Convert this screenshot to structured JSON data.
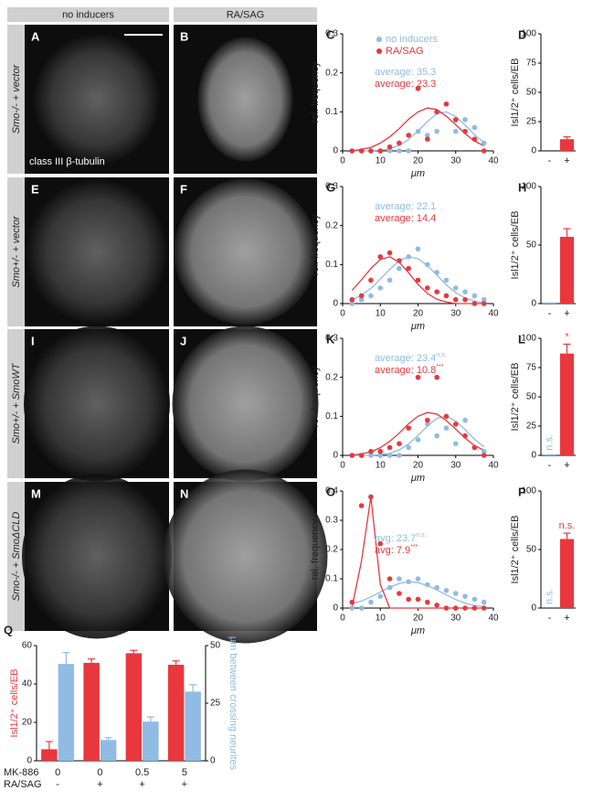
{
  "images": {
    "columns": [
      "no inducers",
      "RA/SAG"
    ],
    "rows": [
      "Smo-/- + vector",
      "Smo+/- + vector",
      "Smo+/- + SmoWT",
      "Smo-/- + SmoΔCLD"
    ],
    "panels": [
      [
        "A",
        "B"
      ],
      [
        "E",
        "F"
      ],
      [
        "I",
        "J"
      ],
      [
        "M",
        "N"
      ]
    ],
    "stain": "class III β-tubulin"
  },
  "chart_data": [
    {
      "type": "scatter",
      "label": "C",
      "xlabel": "μm",
      "ylabel": "rel. frequency",
      "x": [
        2.5,
        5,
        7.5,
        10,
        12.5,
        15,
        17.5,
        20,
        22.5,
        25,
        27.5,
        30,
        32.5,
        35,
        37.5
      ],
      "xlim": [
        0,
        40
      ],
      "xticks": [
        0,
        10,
        20,
        30,
        40
      ],
      "ylim": [
        0,
        0.3
      ],
      "yticks": [
        0,
        0.1,
        0.2,
        0.3
      ],
      "series": [
        {
          "name": "no inducers",
          "color": "#90bbe3",
          "values": [
            0,
            0,
            0,
            0,
            0,
            0,
            0,
            0.05,
            0.04,
            0.05,
            0.12,
            0.05,
            0.08,
            0.06,
            0.02
          ],
          "fit": [
            0,
            0,
            0,
            0.002,
            0.005,
            0.014,
            0.029,
            0.051,
            0.075,
            0.095,
            0.1,
            0.088,
            0.066,
            0.041,
            0.022
          ]
        },
        {
          "name": "RA/SAG",
          "color": "#e8383d",
          "values": [
            0,
            0,
            0,
            0,
            0.01,
            0.02,
            0.04,
            0.16,
            0.03,
            0.1,
            0.12,
            0.08,
            0.05,
            0.03,
            0
          ],
          "fit": [
            0,
            0.004,
            0.009,
            0.02,
            0.036,
            0.057,
            0.081,
            0.1,
            0.11,
            0.106,
            0.089,
            0.067,
            0.044,
            0.025,
            0.013
          ]
        }
      ],
      "annotations": [
        {
          "text": "average: 35.3",
          "color": "#90bbe3"
        },
        {
          "text": "average: 23.3",
          "color": "#e8383d"
        }
      ]
    },
    {
      "type": "bar",
      "label": "D",
      "ylabel": "Isl1/2⁺ cells/EB",
      "categories": [
        "-",
        "+"
      ],
      "values": [
        0,
        10
      ],
      "errors": [
        0,
        2
      ],
      "colors": [
        "#90bbe3",
        "#e8383d"
      ],
      "ylim": [
        0,
        100
      ],
      "yticks": [
        0,
        25,
        50,
        75,
        100
      ]
    },
    {
      "type": "scatter",
      "label": "G",
      "xlabel": "μm",
      "ylabel": "rel. frequency",
      "x": [
        2.5,
        5,
        7.5,
        10,
        12.5,
        15,
        17.5,
        20,
        22.5,
        25,
        27.5,
        30,
        32.5,
        35,
        37.5
      ],
      "xlim": [
        0,
        40
      ],
      "xticks": [
        0,
        10,
        20,
        30,
        40
      ],
      "ylim": [
        0,
        0.3
      ],
      "yticks": [
        0,
        0.1,
        0.2,
        0.3
      ],
      "series": [
        {
          "color": "#90bbe3",
          "values": [
            0,
            0.01,
            0.02,
            0.04,
            0.06,
            0.09,
            0.12,
            0.14,
            0.1,
            0.08,
            0.06,
            0.04,
            0.03,
            0.02,
            0.01
          ],
          "fit": [
            0.01,
            0.021,
            0.039,
            0.063,
            0.088,
            0.11,
            0.12,
            0.115,
            0.097,
            0.073,
            0.048,
            0.028,
            0.014,
            0.006,
            0.002
          ]
        },
        {
          "color": "#e8383d",
          "values": [
            0.01,
            0.02,
            0.06,
            0.12,
            0.13,
            0.11,
            0.09,
            0.06,
            0.04,
            0.03,
            0.02,
            0.01,
            0.01,
            0,
            0
          ],
          "fit": [
            0.034,
            0.061,
            0.09,
            0.113,
            0.12,
            0.106,
            0.079,
            0.049,
            0.026,
            0.011,
            0.004,
            0,
            0,
            0,
            0
          ]
        }
      ],
      "annotations": [
        {
          "text": "average: 22.1",
          "color": "#90bbe3"
        },
        {
          "text": "average: 14.4",
          "color": "#e8383d"
        }
      ]
    },
    {
      "type": "bar",
      "label": "H",
      "ylabel": "Isl1/2⁺ cells/EB",
      "categories": [
        "-",
        "+"
      ],
      "values": [
        1,
        57
      ],
      "errors": [
        0,
        7
      ],
      "colors": [
        "#90bbe3",
        "#e8383d"
      ],
      "ylim": [
        0,
        100
      ],
      "yticks": [
        0,
        50,
        100
      ]
    },
    {
      "type": "scatter",
      "label": "K",
      "xlabel": "μm",
      "ylabel": "rel. frequency",
      "x": [
        2.5,
        5,
        7.5,
        10,
        12.5,
        15,
        17.5,
        20,
        22.5,
        25,
        27.5,
        30,
        32.5,
        35,
        37.5
      ],
      "xlim": [
        0,
        40
      ],
      "xticks": [
        0,
        10,
        20,
        30,
        40
      ],
      "ylim": [
        0,
        0.3
      ],
      "yticks": [
        0,
        0.1,
        0.2,
        0.3
      ],
      "series": [
        {
          "color": "#90bbe3",
          "values": [
            0,
            0,
            0,
            0,
            0,
            0,
            0.02,
            0.04,
            0.08,
            0.05,
            0.07,
            0.03,
            0.09,
            0.02,
            0.01
          ],
          "fit": [
            0,
            0,
            0,
            0.002,
            0.005,
            0.014,
            0.029,
            0.051,
            0.075,
            0.095,
            0.1,
            0.088,
            0.066,
            0.041,
            0.022
          ]
        },
        {
          "color": "#e8383d",
          "values": [
            0,
            0,
            0.01,
            0.01,
            0.02,
            0.03,
            0.07,
            0.2,
            0.09,
            0.2,
            0.1,
            0.08,
            0.05,
            0.02,
            0
          ],
          "fit": [
            0,
            0.004,
            0.009,
            0.02,
            0.036,
            0.057,
            0.081,
            0.1,
            0.11,
            0.106,
            0.089,
            0.067,
            0.044,
            0.025,
            0.013
          ]
        }
      ],
      "annotations": [
        {
          "text": "average: 23.4",
          "sup": "n.s.",
          "color": "#90bbe3"
        },
        {
          "text": "average: 10.8",
          "sup": "***",
          "color": "#e8383d"
        }
      ]
    },
    {
      "type": "bar",
      "label": "L",
      "ylabel": "Isl1/2⁺ cells/EB",
      "categories": [
        "-",
        "+"
      ],
      "values": [
        1,
        87
      ],
      "errors": [
        0,
        8
      ],
      "colors": [
        "#90bbe3",
        "#e8383d"
      ],
      "notes": [
        "n.s.",
        "*"
      ],
      "ylim": [
        0,
        100
      ],
      "yticks": [
        0,
        25,
        50,
        75,
        100
      ]
    },
    {
      "type": "scatter",
      "label": "O",
      "xlabel": "μm",
      "ylabel": "rel. frequency",
      "x": [
        2.5,
        5,
        7.5,
        10,
        12.5,
        15,
        17.5,
        20,
        22.5,
        25,
        27.5,
        30,
        32.5,
        35,
        37.5
      ],
      "xlim": [
        0,
        40
      ],
      "xticks": [
        0,
        10,
        20,
        30,
        40
      ],
      "ylim": [
        0,
        0.4
      ],
      "yticks": [
        0,
        0.1,
        0.2,
        0.3,
        0.4
      ],
      "series": [
        {
          "color": "#90bbe3",
          "values": [
            0,
            0,
            0.02,
            0.04,
            0.07,
            0.1,
            0.09,
            0.1,
            0.08,
            0.07,
            0.06,
            0.05,
            0.04,
            0.03,
            0.02
          ],
          "fit": [
            0.014,
            0.024,
            0.038,
            0.055,
            0.071,
            0.084,
            0.09,
            0.087,
            0.077,
            0.062,
            0.045,
            0.029,
            0.017,
            0.009,
            0.005
          ]
        },
        {
          "color": "#e8383d",
          "values": [
            0.02,
            0.35,
            0.38,
            0.22,
            0.1,
            0.05,
            0.03,
            0.03,
            0.02,
            0.01,
            0,
            0,
            0,
            0,
            0
          ],
          "fit": [
            0.004,
            0.16,
            0.38,
            0.08,
            0,
            0,
            0,
            0,
            0,
            0,
            0,
            0,
            0,
            0,
            0
          ]
        }
      ],
      "annotations": [
        {
          "text": "avg: 23.7",
          "sup": "n.s.",
          "color": "#90bbe3"
        },
        {
          "text": "avg: 7.9",
          "sup": "***",
          "color": "#e8383d"
        }
      ]
    },
    {
      "type": "bar",
      "label": "P",
      "ylabel": "Isl1/2⁺ cells/EB",
      "categories": [
        "-",
        "+"
      ],
      "values": [
        0,
        59
      ],
      "errors": [
        0,
        5
      ],
      "colors": [
        "#90bbe3",
        "#e8383d"
      ],
      "notes": [
        "n.s.",
        "n.s."
      ],
      "ylim": [
        0,
        100
      ],
      "yticks": [
        0,
        50,
        100
      ]
    },
    {
      "type": "grouped_bar",
      "label": "Q",
      "categories": [
        "0",
        "0",
        "0.5",
        "5"
      ],
      "categories2": [
        "-",
        "+",
        "+",
        "+"
      ],
      "category_rows": [
        "MK-886",
        "RA/SAG"
      ],
      "ylim": [
        0,
        60
      ],
      "yticks": [
        0,
        20,
        40,
        60
      ],
      "y2lim": [
        0,
        50
      ],
      "y2ticks": [
        0,
        25,
        50
      ],
      "series": [
        {
          "name": "Isl1/2⁺ cells/EB",
          "color": "#e8383d",
          "values": [
            6,
            51,
            56,
            50
          ],
          "errors": [
            4,
            2,
            1.5,
            2
          ]
        },
        {
          "name": "μm between crossing neurites",
          "color": "#90bbe3",
          "axis": "y2",
          "values": [
            42,
            9,
            17,
            30
          ],
          "errors": [
            5,
            1,
            2,
            3
          ]
        }
      ]
    }
  ]
}
